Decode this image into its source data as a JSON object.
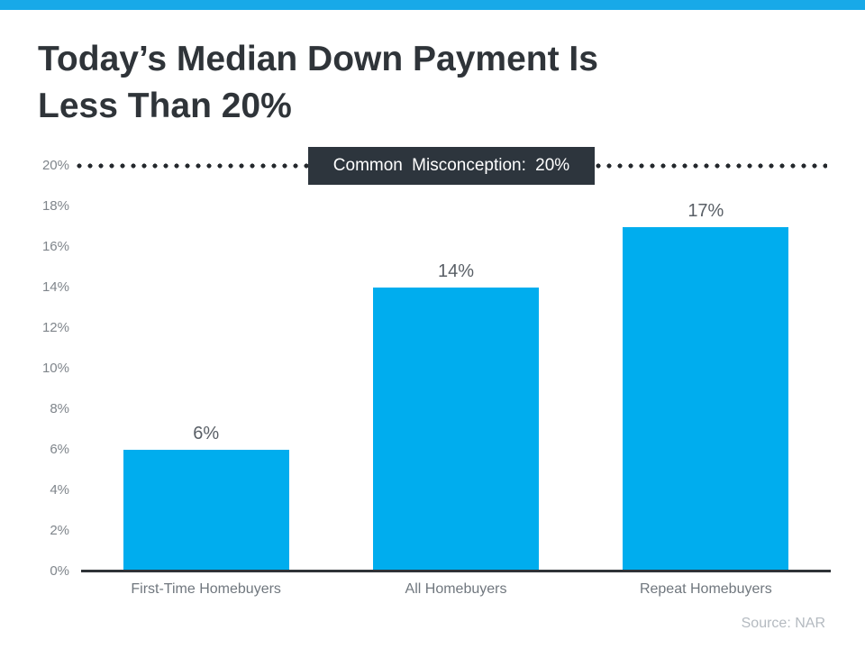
{
  "title": "Today’s Median Down Payment Is\nLess Than 20%",
  "source": "Source: NAR",
  "colors": {
    "top_strip": "#18a9e8",
    "bar_fill": "#00adee",
    "annotation_bg": "#2d353d",
    "dot_color": "#24282c",
    "axis_line": "#2f3337"
  },
  "chart_data": {
    "type": "bar",
    "title": "Today’s Median Down Payment Is Less Than 20%",
    "categories": [
      "First-Time Homebuyers",
      "All Homebuyers",
      "Repeat Homebuyers"
    ],
    "values": [
      6,
      14,
      17
    ],
    "value_labels": [
      "6%",
      "14%",
      "17%"
    ],
    "xlabel": "",
    "ylabel": "",
    "ylim": [
      0,
      20
    ],
    "ytick_step": 2,
    "ytick_labels": [
      "0%",
      "2%",
      "4%",
      "6%",
      "8%",
      "10%",
      "12%",
      "14%",
      "16%",
      "18%",
      "20%"
    ],
    "grid": false,
    "legend": null,
    "annotation": {
      "text": "Common Misconception: 20%",
      "y": 20,
      "style": "dotted-threshold-line"
    },
    "source": "Source: NAR"
  }
}
